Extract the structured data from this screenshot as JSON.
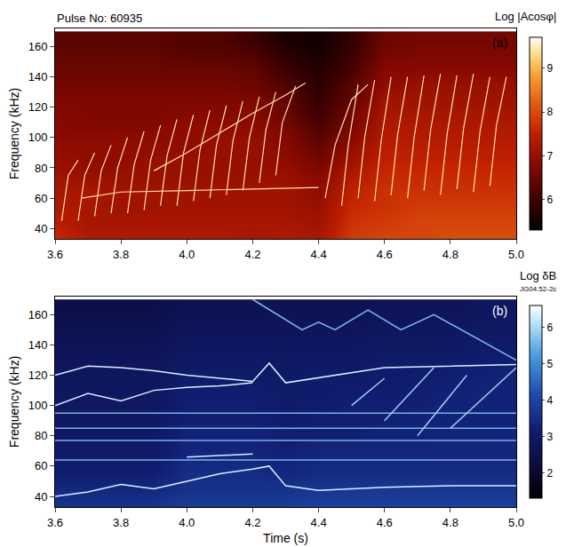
{
  "chart_data": [
    {
      "type": "heatmap",
      "title": "Pulse No: 60935",
      "panel_label": "(a)",
      "colorbar_title": "Log |Acosφ|",
      "y_label": "Frequency (kHz)",
      "xlim": [
        3.6,
        5.0
      ],
      "xticks": [
        3.6,
        3.8,
        {
          "value": 4.0,
          "label": "4.0"
        },
        4.2,
        4.4,
        4.6,
        4.8,
        {
          "value": 5.0,
          "label": "5.0"
        }
      ],
      "ylim": [
        33,
        172
      ],
      "yticks": [
        40,
        60,
        80,
        100,
        120,
        140,
        160
      ],
      "zlim": [
        5.3,
        9.7
      ],
      "zticks": [
        6,
        7,
        8,
        9
      ],
      "x": [
        3.6,
        3.7,
        3.8,
        3.9,
        4.0,
        4.1,
        4.2,
        4.3,
        4.4,
        4.5,
        4.6,
        4.7,
        4.8,
        4.9,
        5.0
      ],
      "y": [
        35,
        45,
        55,
        65,
        75,
        85,
        95,
        105,
        115,
        125,
        135,
        145,
        155,
        165
      ],
      "z": [
        [
          7.6,
          7.3,
          7.3,
          7.3,
          7.3,
          7.3,
          7.2,
          7.3,
          7.2,
          7.8,
          7.9,
          7.9,
          8.0,
          8.0,
          8.0
        ],
        [
          7.4,
          7.2,
          7.2,
          7.2,
          7.2,
          7.2,
          7.2,
          7.2,
          7.1,
          7.7,
          7.8,
          7.9,
          7.9,
          7.9,
          7.9
        ],
        [
          7.3,
          7.2,
          7.1,
          7.1,
          7.1,
          7.1,
          7.1,
          7.1,
          7.0,
          7.6,
          7.7,
          7.8,
          7.8,
          7.8,
          7.8
        ],
        [
          7.2,
          7.2,
          7.1,
          7.1,
          7.1,
          7.1,
          7.1,
          7.1,
          6.9,
          7.5,
          7.7,
          7.7,
          7.7,
          7.7,
          7.7
        ],
        [
          7.1,
          7.0,
          7.0,
          7.0,
          7.0,
          7.0,
          7.0,
          7.0,
          6.8,
          7.3,
          7.6,
          7.6,
          7.6,
          7.6,
          7.6
        ],
        [
          7.0,
          6.9,
          6.9,
          7.0,
          7.0,
          7.0,
          7.0,
          6.9,
          6.6,
          7.1,
          7.5,
          7.5,
          7.5,
          7.5,
          7.5
        ],
        [
          6.9,
          6.9,
          6.9,
          6.9,
          6.9,
          7.0,
          7.0,
          6.8,
          6.4,
          6.9,
          7.4,
          7.4,
          7.4,
          7.4,
          7.4
        ],
        [
          6.8,
          6.8,
          6.8,
          6.8,
          6.9,
          6.9,
          6.9,
          6.7,
          6.2,
          6.7,
          7.3,
          7.3,
          7.3,
          7.3,
          7.3
        ],
        [
          6.8,
          6.7,
          6.7,
          6.7,
          6.8,
          6.8,
          6.8,
          6.5,
          6.0,
          6.6,
          7.2,
          7.2,
          7.2,
          7.2,
          7.2
        ],
        [
          6.7,
          6.7,
          6.7,
          6.7,
          6.7,
          6.7,
          6.7,
          6.4,
          5.9,
          6.4,
          7.1,
          7.1,
          7.1,
          7.1,
          7.1
        ],
        [
          6.6,
          6.6,
          6.6,
          6.6,
          6.6,
          6.6,
          6.5,
          6.2,
          5.8,
          6.3,
          6.9,
          7.0,
          7.0,
          7.0,
          7.0
        ],
        [
          6.5,
          6.5,
          6.5,
          6.5,
          6.5,
          6.5,
          6.4,
          6.0,
          5.7,
          6.1,
          6.8,
          6.8,
          6.8,
          6.8,
          6.8
        ],
        [
          6.4,
          6.4,
          6.4,
          6.4,
          6.3,
          6.3,
          6.2,
          5.8,
          5.6,
          6.0,
          6.6,
          6.7,
          6.7,
          6.7,
          6.7
        ],
        [
          6.3,
          6.3,
          6.3,
          6.3,
          6.2,
          6.2,
          6.0,
          5.6,
          5.5,
          5.9,
          6.5,
          6.6,
          6.6,
          6.6,
          6.6
        ]
      ],
      "series": [
        {
          "type": "line",
          "color": "#ffe3a0",
          "x": [
            3.62,
            3.64,
            3.67,
            null,
            3.67,
            3.69,
            3.72,
            null,
            3.72,
            3.74,
            3.77,
            null,
            3.77,
            3.79,
            3.82,
            null,
            3.82,
            3.84,
            3.87,
            null,
            3.87,
            3.89,
            3.92,
            null,
            3.92,
            3.94,
            3.97,
            null,
            3.97,
            3.99,
            4.02,
            null,
            4.02,
            4.04,
            4.07,
            null,
            4.07,
            4.09,
            4.12,
            null,
            4.12,
            4.14,
            4.17,
            null,
            4.17,
            4.19,
            4.22,
            null,
            4.22,
            4.24,
            4.27,
            null,
            4.27,
            4.29,
            4.33
          ],
          "y": [
            45,
            75,
            85,
            null,
            45,
            75,
            90,
            null,
            48,
            78,
            95,
            null,
            50,
            80,
            100,
            null,
            50,
            82,
            104,
            null,
            52,
            85,
            108,
            null,
            55,
            88,
            112,
            null,
            55,
            90,
            115,
            null,
            58,
            92,
            118,
            null,
            60,
            95,
            121,
            null,
            62,
            98,
            124,
            null,
            65,
            100,
            127,
            null,
            70,
            105,
            130,
            null,
            75,
            110,
            134
          ]
        },
        {
          "type": "line",
          "color": "#ffe3a0",
          "x": [
            4.47,
            4.49,
            4.52,
            null,
            4.52,
            4.54,
            4.57,
            null,
            4.57,
            4.59,
            4.62,
            null,
            4.62,
            4.64,
            4.67,
            null,
            4.67,
            4.69,
            4.72,
            null,
            4.72,
            4.74,
            4.77,
            null,
            4.77,
            4.79,
            4.82,
            null,
            4.82,
            4.84,
            4.87,
            null,
            4.87,
            4.89,
            4.92,
            null,
            4.92,
            4.94,
            4.97
          ],
          "y": [
            55,
            95,
            135,
            null,
            60,
            100,
            138,
            null,
            58,
            98,
            140,
            null,
            62,
            102,
            140,
            null,
            60,
            100,
            141,
            null,
            65,
            105,
            142,
            null,
            62,
            102,
            141,
            null,
            66,
            106,
            142,
            null,
            64,
            104,
            140,
            null,
            68,
            108,
            140
          ]
        },
        {
          "type": "line",
          "color": "#ffe3a0",
          "x": [
            3.9,
            4.0,
            4.1,
            4.2,
            4.3,
            4.36
          ],
          "y": [
            78,
            90,
            103,
            116,
            128,
            136
          ]
        },
        {
          "type": "line",
          "color": "#ffe3a0",
          "x": [
            4.42,
            4.45,
            4.5,
            4.55
          ],
          "y": [
            60,
            95,
            125,
            135
          ]
        },
        {
          "type": "line",
          "color": "#ffe3a0",
          "x": [
            3.68,
            3.8,
            4.0,
            4.2,
            4.4
          ],
          "y": [
            60,
            64,
            65,
            66,
            67
          ]
        }
      ]
    },
    {
      "type": "heatmap",
      "title": "JG04.52-2c",
      "panel_label": "(b)",
      "colorbar_title": "Log δB",
      "y_label": "Frequency (kHz)",
      "x_label": "Time (s)",
      "xlim": [
        3.6,
        5.0
      ],
      "xticks": [
        3.6,
        3.8,
        {
          "value": 4.0,
          "label": "4.0"
        },
        4.2,
        4.4,
        4.6,
        4.8,
        {
          "value": 5.0,
          "label": "5.0"
        }
      ],
      "ylim": [
        33,
        172
      ],
      "yticks": [
        40,
        60,
        80,
        100,
        120,
        140,
        160
      ],
      "zlim": [
        1.3,
        6.6
      ],
      "zticks": [
        2,
        3,
        4,
        5,
        6
      ],
      "x": [
        3.6,
        3.7,
        3.8,
        3.9,
        4.0,
        4.1,
        4.2,
        4.3,
        4.4,
        4.5,
        4.6,
        4.7,
        4.8,
        4.9,
        5.0
      ],
      "y": [
        35,
        45,
        55,
        65,
        75,
        85,
        95,
        105,
        115,
        125,
        135,
        145,
        155,
        165
      ],
      "z": [
        [
          3.6,
          3.6,
          3.6,
          3.6,
          3.8,
          3.8,
          3.8,
          3.8,
          3.9,
          3.9,
          3.9,
          3.9,
          3.9,
          3.9,
          3.9
        ],
        [
          3.4,
          3.4,
          3.4,
          3.4,
          3.6,
          3.6,
          3.6,
          3.6,
          3.7,
          3.7,
          3.7,
          3.7,
          3.7,
          3.7,
          3.7
        ],
        [
          3.2,
          3.2,
          3.2,
          3.2,
          3.5,
          3.5,
          3.5,
          3.4,
          3.5,
          3.5,
          3.5,
          3.5,
          3.5,
          3.5,
          3.5
        ],
        [
          3.1,
          3.1,
          3.1,
          3.1,
          3.4,
          3.4,
          3.4,
          3.3,
          3.4,
          3.4,
          3.4,
          3.4,
          3.4,
          3.4,
          3.4
        ],
        [
          3.0,
          3.0,
          3.0,
          3.0,
          3.3,
          3.3,
          3.3,
          3.2,
          3.3,
          3.3,
          3.3,
          3.3,
          3.4,
          3.4,
          3.4
        ],
        [
          3.0,
          3.0,
          3.0,
          3.0,
          3.3,
          3.3,
          3.3,
          3.2,
          3.2,
          3.2,
          3.3,
          3.3,
          3.3,
          3.3,
          3.3
        ],
        [
          2.9,
          2.9,
          2.9,
          2.9,
          3.2,
          3.2,
          3.2,
          3.1,
          3.2,
          3.2,
          3.2,
          3.3,
          3.3,
          3.3,
          3.3
        ],
        [
          2.9,
          2.9,
          2.9,
          2.9,
          3.2,
          3.2,
          3.2,
          3.1,
          3.1,
          3.2,
          3.2,
          3.2,
          3.3,
          3.3,
          3.3
        ],
        [
          2.8,
          2.8,
          2.8,
          2.8,
          3.1,
          3.1,
          3.1,
          3.0,
          3.1,
          3.1,
          3.1,
          3.2,
          3.2,
          3.3,
          3.3
        ],
        [
          2.8,
          2.8,
          2.8,
          2.8,
          3.0,
          3.0,
          3.0,
          3.0,
          3.0,
          3.0,
          3.1,
          3.1,
          3.2,
          3.2,
          3.3
        ],
        [
          2.7,
          2.7,
          2.7,
          2.7,
          2.9,
          2.9,
          2.9,
          2.9,
          2.9,
          2.9,
          3.0,
          3.0,
          3.0,
          3.1,
          3.1
        ],
        [
          2.6,
          2.6,
          2.6,
          2.6,
          2.8,
          2.8,
          2.8,
          2.8,
          2.8,
          2.8,
          2.9,
          2.9,
          2.9,
          3.0,
          3.0
        ],
        [
          2.5,
          2.5,
          2.5,
          2.5,
          2.7,
          2.7,
          2.7,
          2.7,
          2.7,
          2.7,
          2.8,
          2.8,
          2.8,
          2.9,
          2.9
        ],
        [
          2.4,
          2.4,
          2.4,
          2.4,
          2.6,
          2.6,
          2.6,
          2.6,
          2.6,
          2.6,
          2.7,
          2.7,
          2.7,
          2.8,
          2.8
        ]
      ],
      "series": [
        {
          "type": "line",
          "color": "#7fb0e0",
          "x": [
            3.6,
            5.0,
            null,
            3.6,
            5.0,
            null,
            3.6,
            5.0,
            null,
            3.6,
            5.0
          ],
          "y": [
            64,
            64,
            null,
            77,
            77,
            null,
            95,
            95,
            null,
            85,
            85
          ]
        },
        {
          "type": "line",
          "color": "#7fb8ef",
          "x": [
            4.2,
            4.35,
            4.4,
            4.45,
            4.55,
            4.65,
            4.75,
            5.0
          ],
          "y": [
            170,
            150,
            155,
            150,
            163,
            150,
            160,
            130
          ]
        },
        {
          "type": "line",
          "color": "#9fd0f5",
          "x": [
            4.5,
            4.6,
            null,
            4.6,
            4.75,
            null,
            4.7,
            4.85,
            null,
            4.8,
            5.0
          ],
          "y": [
            100,
            118,
            null,
            90,
            125,
            null,
            80,
            120,
            null,
            85,
            125
          ]
        },
        {
          "type": "line",
          "color": "#d6f2ff",
          "x": [
            3.6,
            3.7,
            3.8,
            3.9,
            4.0,
            4.1,
            4.2,
            4.25,
            4.3,
            4.4,
            4.6,
            4.8,
            5.0
          ],
          "y": [
            40,
            43,
            48,
            45,
            50,
            55,
            58,
            60,
            47,
            44,
            46,
            47,
            47
          ]
        },
        {
          "type": "line",
          "color": "#d6f2ff",
          "x": [
            3.6,
            3.7,
            3.8,
            3.9,
            4.0,
            4.1,
            4.2,
            4.25,
            4.3,
            4.6,
            5.0
          ],
          "y": [
            120,
            126,
            125,
            123,
            120,
            118,
            116,
            128,
            115,
            125,
            127
          ]
        },
        {
          "type": "line",
          "color": "#d6f2ff",
          "x": [
            3.6,
            3.7,
            3.8,
            3.9,
            4.0,
            4.1,
            4.2
          ],
          "y": [
            100,
            108,
            103,
            110,
            112,
            113,
            115
          ]
        },
        {
          "type": "line",
          "color": "#d6f2ff",
          "x": [
            4.0,
            4.2
          ],
          "y": [
            66,
            68
          ]
        }
      ]
    }
  ]
}
